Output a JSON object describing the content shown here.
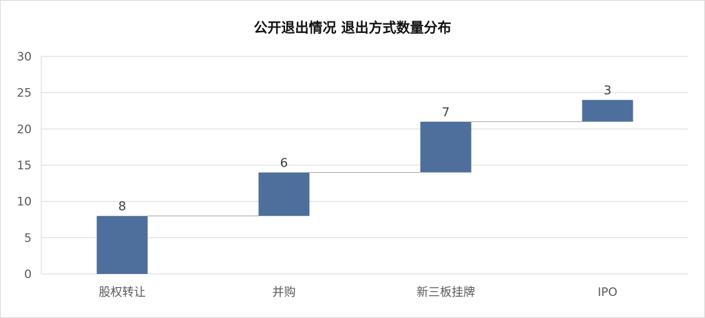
{
  "chart_data": {
    "type": "waterfall",
    "title": "公开退出情况 退出方式数量分布",
    "categories": [
      "股权转让",
      "并购",
      "新三板挂牌",
      "IPO"
    ],
    "values": [
      8,
      6,
      7,
      3
    ],
    "data_labels": [
      "8",
      "6",
      "7",
      "3"
    ],
    "ylim": [
      0,
      30
    ],
    "yticks": [
      0,
      5,
      10,
      15,
      20,
      25,
      30
    ],
    "ytick_labels": [
      "0",
      "5",
      "10",
      "15",
      "20",
      "25",
      "30"
    ],
    "grid": true,
    "connector_lines": true,
    "colors": {
      "bar": "#4e6f9b",
      "grid": "#d9d9d9",
      "connector": "#a6a6a6"
    }
  }
}
